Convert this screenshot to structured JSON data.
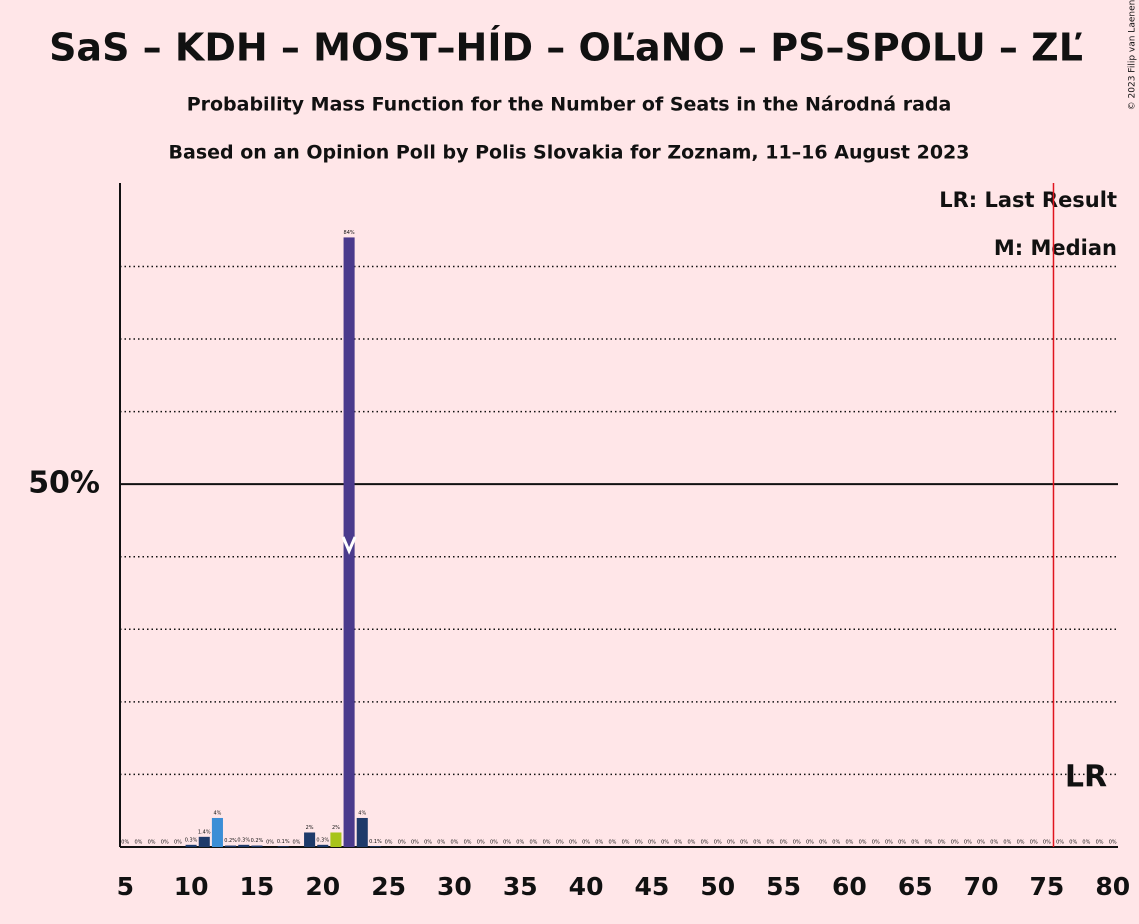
{
  "chart_data": {
    "type": "bar",
    "title": "SaS – KDH – MOST–HÍD – OĽaNO – PS–SPOLU – ZĽ",
    "subtitle": [
      "Probability Mass Function for the Number of Seats in the Národná rada",
      "Based on an Opinion Poll by Polis Slovakia for Zoznam, 11–16 August 2023"
    ],
    "copyright": "© 2023 Filip van Laenen",
    "legend": [
      "LR: Last Result",
      "M: Median"
    ],
    "last_result_label": "LR",
    "x": [
      5,
      6,
      7,
      8,
      9,
      10,
      11,
      12,
      13,
      14,
      15,
      16,
      17,
      18,
      19,
      20,
      21,
      22,
      23,
      24,
      25,
      26,
      27,
      28,
      29,
      30,
      31,
      32,
      33,
      34,
      35,
      36,
      37,
      38,
      39,
      40,
      41,
      42,
      43,
      44,
      45,
      46,
      47,
      48,
      49,
      50,
      51,
      52,
      53,
      54,
      55,
      56,
      57,
      58,
      59,
      60,
      61,
      62,
      63,
      64,
      65,
      66,
      67,
      68,
      69,
      70,
      71,
      72,
      73,
      74,
      75,
      76,
      77,
      78,
      79,
      80
    ],
    "values": [
      0,
      0,
      0,
      0,
      0,
      0.3,
      1.4,
      4,
      0.2,
      0.3,
      0.2,
      0,
      0.1,
      0,
      2,
      0.3,
      2,
      84,
      4,
      0.1,
      0,
      0,
      0,
      0,
      0,
      0,
      0,
      0,
      0,
      0,
      0,
      0,
      0,
      0,
      0,
      0,
      0,
      0,
      0,
      0,
      0,
      0,
      0,
      0,
      0,
      0,
      0,
      0,
      0,
      0,
      0,
      0,
      0,
      0,
      0,
      0,
      0,
      0,
      0,
      0,
      0,
      0,
      0,
      0,
      0,
      0,
      0,
      0,
      0,
      0,
      0,
      0,
      0,
      0,
      0,
      0
    ],
    "value_labels": [
      "0%",
      "0%",
      "0%",
      "0%",
      "0%",
      "0.3%",
      "1.4%",
      "4%",
      "0.2%",
      "0.3%",
      "0.2%",
      "0%",
      "0.1%",
      "0%",
      "2%",
      "0.3%",
      "2%",
      "84%",
      "4%",
      "0.1%",
      "0%",
      "0%",
      "0%",
      "0%",
      "0%",
      "0%",
      "0%",
      "0%",
      "0%",
      "0%",
      "0%",
      "0%",
      "0%",
      "0%",
      "0%",
      "0%",
      "0%",
      "0%",
      "0%",
      "0%",
      "0%",
      "0%",
      "0%",
      "0%",
      "0%",
      "0%",
      "0%",
      "0%",
      "0%",
      "0%",
      "0%",
      "0%",
      "0%",
      "0%",
      "0%",
      "0%",
      "0%",
      "0%",
      "0%",
      "0%",
      "0%",
      "0%",
      "0%",
      "0%",
      "0%",
      "0%",
      "0%",
      "0%",
      "0%",
      "0%",
      "0%",
      "0%",
      "0%",
      "0%",
      "0%",
      "0%"
    ],
    "colors": [
      "#1e3a6a",
      "#1e3a6a",
      "#1e3a6a",
      "#1e3a6a",
      "#1e3a6a",
      "#1e3a6a",
      "#1e3a6a",
      "#3b8ed6",
      "#1e3a6a",
      "#1e3a6a",
      "#1e3a6a",
      "#1e3a6a",
      "#1e3a6a",
      "#1e3a6a",
      "#1e3a6a",
      "#1e3a6a",
      "#a8c41a",
      "#4a3a8c",
      "#1e3a6a",
      "#1e3a6a",
      "#1e3a6a",
      "#1e3a6a",
      "#1e3a6a",
      "#1e3a6a",
      "#1e3a6a",
      "#1e3a6a",
      "#1e3a6a",
      "#1e3a6a",
      "#1e3a6a",
      "#1e3a6a",
      "#1e3a6a",
      "#1e3a6a",
      "#1e3a6a",
      "#1e3a6a",
      "#1e3a6a",
      "#1e3a6a",
      "#1e3a6a",
      "#1e3a6a",
      "#1e3a6a",
      "#1e3a6a",
      "#1e3a6a",
      "#1e3a6a",
      "#1e3a6a",
      "#1e3a6a",
      "#1e3a6a",
      "#1e3a6a",
      "#1e3a6a",
      "#1e3a6a",
      "#1e3a6a",
      "#1e3a6a",
      "#1e3a6a",
      "#1e3a6a",
      "#1e3a6a",
      "#1e3a6a",
      "#1e3a6a",
      "#1e3a6a",
      "#1e3a6a",
      "#1e3a6a",
      "#1e3a6a",
      "#1e3a6a",
      "#1e3a6a",
      "#1e3a6a",
      "#1e3a6a",
      "#1e3a6a",
      "#1e3a6a",
      "#1e3a6a",
      "#1e3a6a",
      "#1e3a6a",
      "#1e3a6a",
      "#1e3a6a",
      "#1e3a6a",
      "#1e3a6a",
      "#1e3a6a",
      "#1e3a6a",
      "#1e3a6a",
      "#1e3a6a"
    ],
    "median": 22,
    "last_result": 76,
    "xlim": [
      4.6,
      80.4
    ],
    "xticks": [
      5,
      10,
      15,
      20,
      25,
      30,
      35,
      40,
      45,
      50,
      55,
      60,
      65,
      70,
      75,
      80
    ],
    "ylim": [
      0,
      91.5
    ],
    "yticks": [
      {
        "value": 50,
        "label": "50%"
      }
    ],
    "gridlines": [
      10,
      20,
      30,
      40,
      60,
      70,
      80
    ]
  }
}
